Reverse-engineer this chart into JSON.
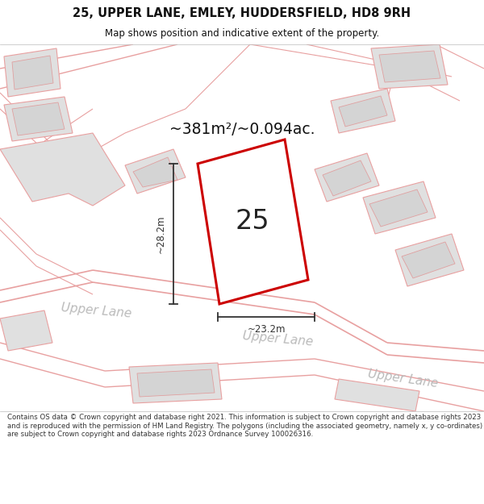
{
  "title_line1": "25, UPPER LANE, EMLEY, HUDDERSFIELD, HD8 9RH",
  "title_line2": "Map shows position and indicative extent of the property.",
  "area_label": "~381m²/~0.094ac.",
  "house_number": "25",
  "dim_vertical": "~28.2m",
  "dim_horizontal": "~23.2m",
  "footer": "Contains OS data © Crown copyright and database right 2021. This information is subject to Crown copyright and database rights 2023 and is reproduced with the permission of HM Land Registry. The polygons (including the associated geometry, namely x, y co-ordinates) are subject to Crown copyright and database rights 2023 Ordnance Survey 100026316.",
  "bg_color": "#f0f0f0",
  "road_color": "#e8a0a0",
  "building_fill": "#e0e0e0",
  "property_color": "#cc0000",
  "dim_color": "#333333",
  "street_label_color": "#bbbbbb",
  "title_color": "#111111",
  "text_color": "#333333"
}
